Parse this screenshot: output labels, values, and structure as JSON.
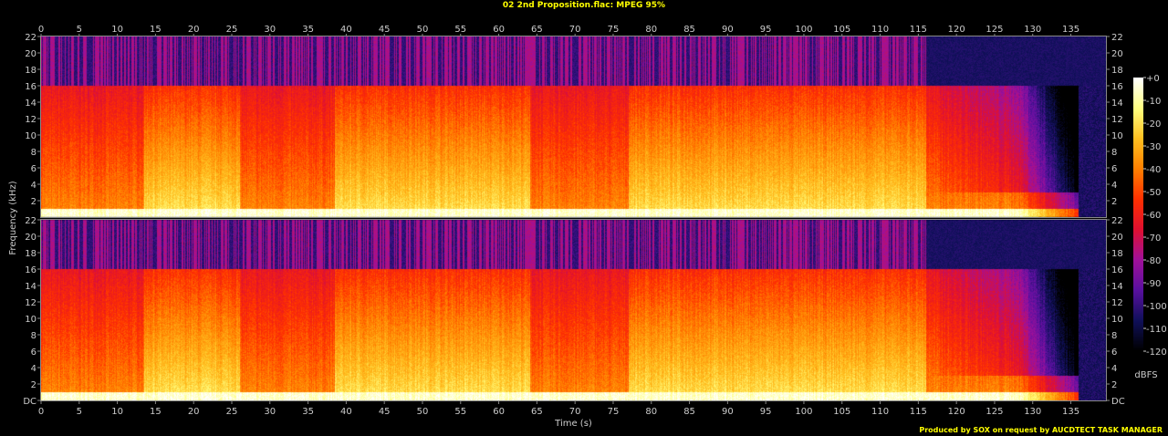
{
  "title": "02 2nd Proposition.flac: MPEG 95%",
  "credit": "Produced by SOX on request by AUCDTECT TASK MANAGER",
  "chart_data": {
    "type": "heatmap",
    "title": "02 2nd Proposition.flac: MPEG 95%",
    "xlabel": "Time (s)",
    "ylabel": "Frequency (kHz)",
    "xlim": [
      0,
      139.6
    ],
    "ylim": [
      0,
      22
    ],
    "x_ticks": [
      "0",
      "5",
      "10",
      "15",
      "20",
      "25",
      "30",
      "35",
      "40",
      "45",
      "50",
      "55",
      "60",
      "65",
      "70",
      "75",
      "80",
      "85",
      "90",
      "95",
      "100",
      "105",
      "110",
      "115",
      "120",
      "125",
      "130",
      "135"
    ],
    "y_ticks": [
      "DC",
      "2",
      "4",
      "6",
      "8",
      "10",
      "12",
      "14",
      "16",
      "18",
      "20",
      "22"
    ],
    "channels": 2,
    "lowpass_cutoff_khz": 16,
    "quiet_sections_s": [
      [
        0,
        13.5
      ],
      [
        26,
        38.5
      ],
      [
        64,
        77
      ],
      [
        116,
        139.6
      ]
    ],
    "colorbar": {
      "label": "dBFS",
      "ticks": [
        "+0",
        "-10",
        "-20",
        "-30",
        "-40",
        "-50",
        "-60",
        "-70",
        "-80",
        "-90",
        "-100",
        "-110",
        "-120"
      ],
      "range": [
        -120,
        0
      ]
    },
    "colormap": [
      "#000000",
      "#10105a",
      "#5a10a0",
      "#a0109a",
      "#e01030",
      "#ff3000",
      "#ff8000",
      "#ffc020",
      "#ffff80",
      "#ffffff"
    ]
  }
}
